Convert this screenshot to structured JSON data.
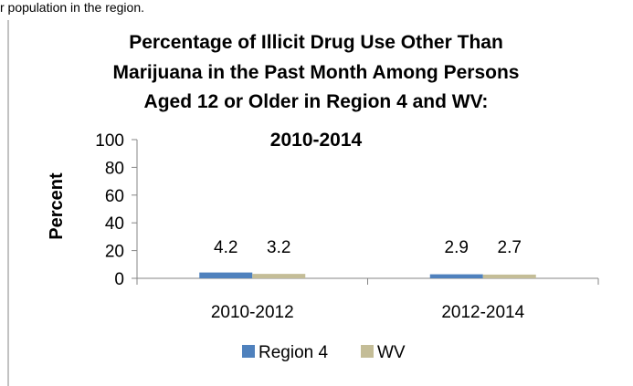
{
  "top_caption": "r population in the region.",
  "chart_data": {
    "type": "bar",
    "title_lines": [
      "Percentage of Illicit Drug Use Other Than",
      "Marijuana in the Past Month Among Persons",
      "Aged 12 or Older in Region 4 and WV:",
      "2010-2014"
    ],
    "ylabel": "Percent",
    "xlabel": "",
    "ylim": [
      0,
      100
    ],
    "yticks": [
      0,
      20,
      40,
      60,
      80,
      100
    ],
    "categories": [
      "2010-2012",
      "2012-2014"
    ],
    "series": [
      {
        "name": "Region 4",
        "values": [
          4.2,
          2.9
        ],
        "color": "#4f81bd"
      },
      {
        "name": "WV",
        "values": [
          3.2,
          2.7
        ],
        "color": "#c4bd97"
      }
    ],
    "data_labels": [
      [
        "4.2",
        "2.9"
      ],
      [
        "3.2",
        "2.7"
      ]
    ],
    "legend_position": "bottom",
    "grid": false
  }
}
